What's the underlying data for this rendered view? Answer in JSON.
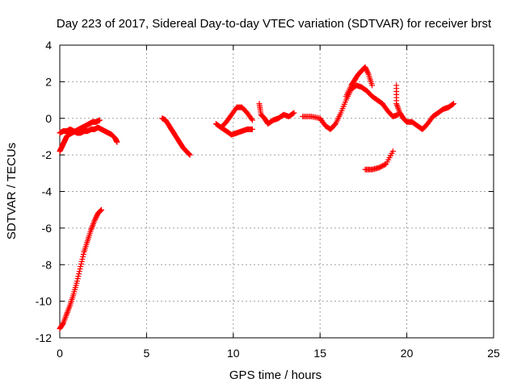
{
  "chart_data": {
    "type": "scatter",
    "title": "Day 223 of 2017, Sidereal Day-to-day VTEC variation (SDTVAR) for receiver brst",
    "xlabel": "GPS time / hours",
    "ylabel": "SDTVAR / TECUs",
    "xlim": [
      0,
      25
    ],
    "ylim": [
      -12,
      4
    ],
    "xticks": [
      "0",
      "5",
      "10",
      "15",
      "20",
      "25"
    ],
    "yticks": [
      "-12",
      "-10",
      "-8",
      "-6",
      "-4",
      "-2",
      "0",
      "2",
      "4"
    ],
    "grid": true,
    "marker": "plus",
    "color": "#ff0000",
    "series": [
      {
        "x": [
          0.0,
          0.2,
          0.4,
          0.6,
          0.8,
          1.0,
          1.2,
          1.4,
          1.6,
          1.8,
          2.0,
          2.2,
          2.4
        ],
        "y": [
          -11.5,
          -11.2,
          -10.7,
          -10.2,
          -9.6,
          -8.9,
          -8.1,
          -7.3,
          -6.7,
          -6.1,
          -5.6,
          -5.2,
          -5.0
        ]
      },
      {
        "x": [
          0.0,
          0.1,
          0.2,
          0.3,
          0.4,
          0.5,
          0.7,
          0.9,
          1.1,
          1.3,
          1.5,
          1.7,
          1.9,
          2.1,
          2.3
        ],
        "y": [
          -1.8,
          -1.6,
          -1.4,
          -1.2,
          -1.0,
          -0.9,
          -0.8,
          -0.7,
          -0.6,
          -0.5,
          -0.4,
          -0.3,
          -0.2,
          -0.2,
          -0.1
        ]
      },
      {
        "x": [
          0.0,
          0.2,
          0.4,
          0.6,
          0.8,
          1.0,
          1.2,
          1.4,
          1.6,
          1.8,
          2.0,
          2.2,
          2.4,
          2.6,
          2.8,
          3.0,
          3.2,
          3.3
        ],
        "y": [
          -0.8,
          -0.7,
          -0.7,
          -0.6,
          -0.7,
          -0.8,
          -0.8,
          -0.7,
          -0.7,
          -0.6,
          -0.6,
          -0.5,
          -0.6,
          -0.7,
          -0.8,
          -0.9,
          -1.1,
          -1.3
        ]
      },
      {
        "x": [
          5.9,
          6.1,
          6.3,
          6.5,
          6.7,
          6.9,
          7.1,
          7.3,
          7.5
        ],
        "y": [
          0.0,
          -0.1,
          -0.4,
          -0.7,
          -1.0,
          -1.3,
          -1.6,
          -1.8,
          -2.0
        ]
      },
      {
        "x": [
          9.0,
          9.3,
          9.6,
          9.9,
          10.2,
          10.5,
          10.8,
          11.1
        ],
        "y": [
          -0.3,
          -0.5,
          -0.7,
          -0.9,
          -0.8,
          -0.7,
          -0.6,
          -0.6
        ]
      },
      {
        "x": [
          9.3,
          9.6,
          9.9,
          10.2,
          10.5,
          10.8,
          11.1
        ],
        "y": [
          -0.5,
          -0.2,
          0.2,
          0.6,
          0.6,
          0.3,
          -0.1
        ]
      },
      {
        "x": [
          11.5,
          11.6,
          11.8,
          12.0,
          12.3,
          12.6,
          12.9,
          13.2,
          13.5
        ],
        "y": [
          0.8,
          0.2,
          0.0,
          -0.3,
          -0.1,
          0.0,
          0.2,
          0.1,
          0.3
        ]
      },
      {
        "x": [
          14.0,
          14.5,
          15.0,
          15.3,
          15.6,
          15.9,
          16.2,
          16.5,
          16.8,
          17.1,
          17.4,
          17.7,
          18.0,
          18.3,
          18.6,
          18.9,
          19.2,
          19.5
        ],
        "y": [
          0.1,
          0.1,
          0.0,
          -0.4,
          -0.6,
          -0.3,
          0.3,
          1.0,
          1.6,
          1.8,
          1.7,
          1.5,
          1.2,
          1.0,
          0.8,
          0.4,
          0.1,
          0.2
        ]
      },
      {
        "x": [
          16.5,
          16.8,
          17.0,
          17.2,
          17.4,
          17.6,
          17.8,
          18.0
        ],
        "y": [
          1.2,
          1.8,
          2.1,
          2.4,
          2.6,
          2.8,
          2.4,
          1.8
        ]
      },
      {
        "x": [
          17.6,
          18.0,
          18.4,
          18.8,
          19.2
        ],
        "y": [
          -2.8,
          -2.8,
          -2.7,
          -2.5,
          -1.8
        ]
      },
      {
        "x": [
          19.4,
          19.4,
          19.6,
          19.8,
          20.0,
          20.3,
          20.6,
          20.9,
          21.2,
          21.5,
          21.8,
          22.1,
          22.4,
          22.7
        ],
        "y": [
          1.8,
          0.8,
          0.3,
          0.0,
          -0.2,
          -0.2,
          -0.4,
          -0.6,
          -0.3,
          0.1,
          0.3,
          0.5,
          0.6,
          0.8
        ]
      }
    ]
  }
}
